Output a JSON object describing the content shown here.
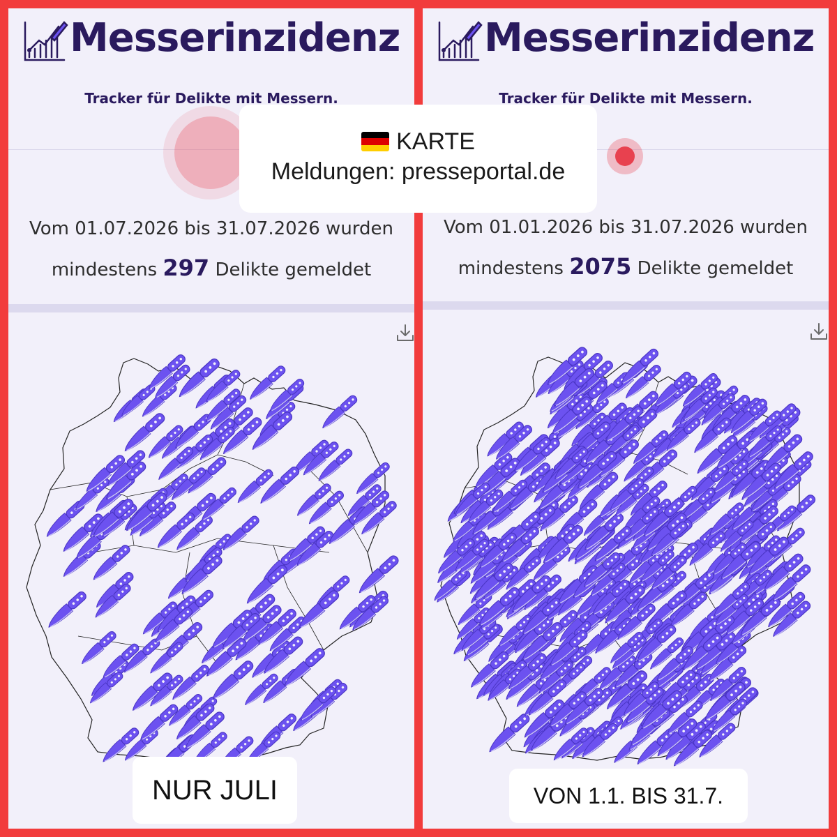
{
  "app": {
    "brand_name": "Messerinzidenz",
    "tagline": "Tracker für Delikte mit Messern."
  },
  "overlay": {
    "map_label": "KARTE",
    "source_label": "Meldungen: presseportal.de",
    "flag_icon": "german-flag-icon",
    "flag_colors": [
      "#000000",
      "#dd0000",
      "#ffce00"
    ]
  },
  "panels": [
    {
      "id": "left",
      "stat_prefix": "Vom 01.07.2026 bis 31.07.2026 wurden",
      "stat_mid": "mindestens",
      "count": "297",
      "stat_suffix": "Delikte gemeldet",
      "caption": "NUR JULI",
      "marker_count": 130
    },
    {
      "id": "right",
      "stat_prefix": "Vom 01.01.2026 bis 31.07.2026 wurden",
      "stat_mid": "mindestens",
      "count": "2075",
      "stat_suffix": "Delikte gemeldet",
      "caption": "VON 1.1. BIS 31.7.",
      "marker_count": 420
    }
  ],
  "icons": {
    "logo": "knife-chart-icon",
    "download": "download-icon",
    "marker": "knife-marker-icon"
  },
  "colors": {
    "brand": "#2a1a5e",
    "marker_fill": "#6c52f0",
    "marker_stroke": "#4a35c4",
    "frame": "#f23c3c",
    "pulse": "#e8414f"
  }
}
